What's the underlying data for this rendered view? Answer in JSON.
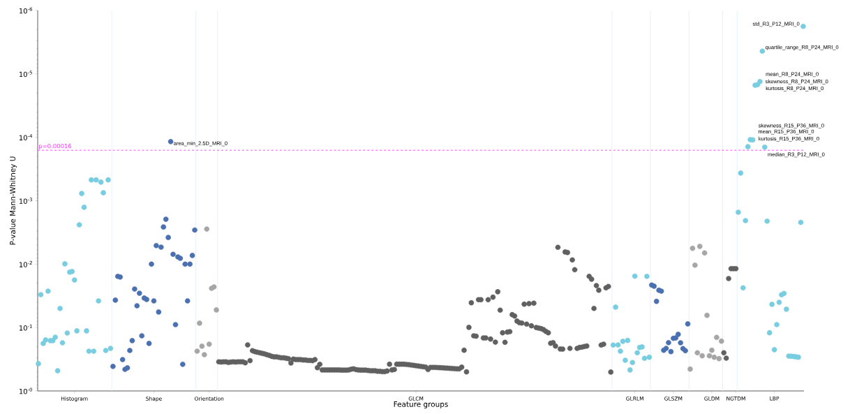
{
  "chart_data": {
    "type": "scatter",
    "xlabel": "Feature groups",
    "ylabel": "P-value Mann-Whitney U",
    "log": "y",
    "marker": "circle",
    "ylim": [
      1,
      1e-06
    ],
    "yticks": [
      {
        "value": 1,
        "label": "10$^{-0}$"
      },
      {
        "value": 0.1,
        "label": "10$^{-1}$"
      },
      {
        "value": 0.01,
        "label": "10$^{-2}$"
      },
      {
        "value": 0.001,
        "label": "10$^{-3}$"
      },
      {
        "value": 0.0001,
        "label": "10$^{-4}$"
      },
      {
        "value": 1e-05,
        "label": "10$^{-5}$"
      },
      {
        "value": 1e-06,
        "label": "10$^{-6}$"
      }
    ],
    "categories": [
      null,
      null,
      null,
      null,
      null,
      null,
      null,
      null,
      null,
      null,
      null,
      null,
      null,
      null,
      null,
      "Histogram",
      null,
      null,
      null,
      null,
      null,
      null,
      null,
      null,
      null,
      null,
      null,
      null,
      null,
      null,
      null,
      null,
      null,
      null,
      null,
      null,
      null,
      null,
      null,
      null,
      null,
      null,
      null,
      null,
      null,
      null,
      null,
      null,
      "Shape",
      null,
      null,
      null,
      null,
      null,
      null,
      null,
      null,
      null,
      null,
      null,
      null,
      null,
      null,
      null,
      null,
      null,
      null,
      null,
      null,
      null,
      null,
      "Orientation",
      null,
      null,
      null,
      null,
      null,
      null,
      null,
      null,
      null,
      null,
      null,
      null,
      null,
      null,
      null,
      null,
      null,
      null,
      null,
      null,
      null,
      null,
      null,
      null,
      null,
      null,
      null,
      null,
      null,
      null,
      null,
      null,
      null,
      null,
      null,
      null,
      null,
      null,
      null,
      null,
      null,
      null,
      null,
      null,
      null,
      null,
      null,
      null,
      null,
      null,
      null,
      null,
      null,
      null,
      null,
      null,
      null,
      null,
      null,
      null,
      null,
      null,
      null,
      null,
      null,
      null,
      null,
      null,
      null,
      null,
      null,
      null,
      null,
      null,
      null,
      null,
      null,
      null,
      null,
      null,
      null,
      null,
      null,
      null,
      null,
      "GLCM",
      null,
      null,
      null,
      null,
      null,
      null,
      null,
      null,
      null,
      null,
      null,
      null,
      null,
      null,
      null,
      null,
      null,
      null,
      null,
      null,
      null,
      null,
      null,
      null,
      null,
      null,
      null,
      null,
      null,
      null,
      null,
      null,
      null,
      null,
      null,
      null,
      null,
      null,
      null,
      null,
      null,
      null,
      null,
      null,
      null,
      null,
      null,
      null,
      null,
      null,
      null,
      null,
      null,
      null,
      null,
      null,
      null,
      null,
      null,
      null,
      null,
      null,
      null,
      null,
      null,
      null,
      null,
      null,
      null,
      null,
      null,
      null,
      null,
      null,
      null,
      null,
      null,
      null,
      null,
      null,
      null,
      null,
      null,
      null,
      null,
      null,
      null,
      null,
      null,
      null,
      "GLRLM",
      null,
      null,
      null,
      null,
      null,
      null,
      null,
      null,
      null,
      null,
      null,
      null,
      null,
      null,
      null,
      "GLSZM",
      null,
      null,
      null,
      null,
      null,
      null,
      null,
      null,
      null,
      null,
      null,
      null,
      null,
      null,
      null,
      "GLDM",
      null,
      null,
      null,
      null,
      null,
      null,
      null,
      null,
      null,
      "NGTDM",
      null,
      null,
      null,
      null,
      null,
      null,
      null,
      null,
      null,
      null,
      null,
      null,
      null,
      null,
      null,
      "LBP",
      null,
      null,
      null,
      null,
      null,
      null,
      null,
      null,
      null,
      null,
      null,
      null
    ],
    "values": [
      0.372,
      0.0303,
      0.178,
      0.157,
      0.0267,
      0.161,
      0.161,
      0.142,
      0.48,
      0.05,
      0.174,
      0.0099,
      0.122,
      0.0134,
      0.0131,
      0.0178,
      0.113,
      0.0024,
      0.00077,
      0.00127,
      0.113,
      0.236,
      0.00047,
      0.236,
      0.00047,
      0.038,
      0.00051,
      0.00075,
      0.23,
      0.00047,
      0.213,
      0.41,
      0.037,
      0.0156,
      0.016,
      0.32,
      0.456,
      0.433,
      0.23,
      0.161,
      0.0247,
      0.0454,
      0.0288,
      0.135,
      0.0343,
      0.0361,
      0.178,
      0.01,
      0.038,
      0.0051,
      0.057,
      0.0054,
      0.0026,
      0.00196,
      0.0038,
      0.000117,
      0.007,
      0.09,
      0.0077,
      0.0081,
      0.38,
      0.01,
      0.038,
      0.01,
      0.0073,
      0.0029,
      0.236,
      0.0855,
      0.197,
      0.268,
      0.0028,
      0.183,
      0.0241,
      0.0229,
      0.0528,
      0.347,
      0.35,
      0.347,
      0.347,
      0.355,
      0.35,
      0.347,
      0.35,
      0.347,
      0.347,
      0.347,
      0.36,
      0.188,
      0.333,
      0.232,
      0.24,
      0.245,
      0.25,
      0.255,
      0.26,
      0.268,
      0.275,
      0.285,
      0.29,
      0.29,
      0.295,
      0.3,
      0.3,
      0.305,
      0.31,
      0.363,
      0.315,
      0.32,
      0.32,
      0.32,
      0.325,
      0.325,
      0.33,
      0.33,
      0.333,
      0.32,
      0.43,
      0.38,
      0.467,
      0.467,
      0.467,
      0.467,
      0.467,
      0.467,
      0.467,
      0.467,
      0.47,
      0.47,
      0.47,
      0.467,
      0.455,
      0.448,
      0.46,
      0.467,
      0.47,
      0.47,
      0.47,
      0.475,
      0.48,
      0.48,
      0.48,
      0.49,
      0.49,
      0.496,
      0.496,
      0.485,
      0.379,
      0.467,
      0.459,
      0.379,
      0.379,
      0.379,
      0.379,
      0.382,
      0.385,
      0.39,
      0.395,
      0.4,
      0.405,
      0.41,
      0.415,
      0.42,
      0.459,
      0.425,
      0.425,
      0.425,
      0.428,
      0.43,
      0.432,
      0.435,
      0.437,
      0.44,
      0.442,
      0.445,
      0.448,
      0.448,
      0.422,
      0.228,
      0.5,
      0.0995,
      0.0407,
      0.135,
      0.137,
      0.0364,
      0.0364,
      0.146,
      0.146,
      0.0364,
      0.152,
      0.0332,
      0.17,
      0.0273,
      0.0532,
      0.121,
      0.171,
      0.118,
      0.116,
      0.0626,
      0.0659,
      0.0792,
      0.084,
      0.085,
      0.0428,
      0.0883,
      0.042,
      0.094,
      0.0413,
      0.1,
      0.102,
      0.104,
      0.108,
      0.115,
      0.121,
      0.177,
      0.173,
      0.196,
      0.00543,
      0.218,
      0.219,
      0.00644,
      0.00656,
      0.213,
      0.0086,
      0.01225,
      0.213,
      0.206,
      0.204,
      0.199,
      0.196,
      0.0156,
      0.0173,
      0.0499,
      0.0218,
      0.0258,
      0.189,
      0.183,
      0.0237,
      0.0225,
      0.504,
      0.189,
      0.0477,
      0.188,
      0.236,
      0.165,
      0.328,
      0.16,
      0.467,
      0.356,
      0.0155,
      0.25,
      0.206,
      0.202,
      0.306,
      0.0156,
      0.294,
      0.0214,
      0.0223,
      0.0387,
      0.0258,
      0.0267,
      0.228,
      0.213,
      0.173,
      0.24,
      0.148,
      0.146,
      0.128,
      0.174,
      0.215,
      0.232,
      0.0877,
      0.452,
      0.00563,
      0.0104,
      0.25,
      0.00526,
      0.279,
      0.00666,
      0.0642,
      0.279,
      0.228,
      0.294,
      0.143,
      0.309,
      0.164,
      0.25,
      0.304,
      0.0169,
      0.0118,
      0.0118,
      0.0118,
      0.00152,
      0.000367,
      0.0237,
      0.00206,
      0.000141,
      0.000109,
      0.00011,
      1.51e-05,
      1.48e-05,
      1.32e-05,
      4.38e-06,
      0.000143,
      0.0021,
      0.121,
      0.0431,
      0.224,
      0.09,
      0.04,
      0.0305,
      0.029,
      0.0515,
      0.282,
      0.284,
      0.286,
      0.29,
      0.294,
      0.0022,
      1.78e-06
    ],
    "colors": [
      "#78cde0",
      "#78cde0",
      "#78cde0",
      "#78cde0",
      "#78cde0",
      "#78cde0",
      "#78cde0",
      "#78cde0",
      "#78cde0",
      "#78cde0",
      "#78cde0",
      "#78cde0",
      "#78cde0",
      "#78cde0",
      "#78cde0",
      "#78cde0",
      "#78cde0",
      "#78cde0",
      "#78cde0",
      "#78cde0",
      "#78cde0",
      "#78cde0",
      "#78cde0",
      "#78cde0",
      "#78cde0",
      "#78cde0",
      "#78cde0",
      "#78cde0",
      "#78cde0",
      "#78cde0",
      "#78cde0",
      "#4a70b0",
      "#4a70b0",
      "#4a70b0",
      "#4a70b0",
      "#4a70b0",
      "#4a70b0",
      "#4a70b0",
      "#4a70b0",
      "#4a70b0",
      "#4a70b0",
      "#4a70b0",
      "#4a70b0",
      "#4a70b0",
      "#4a70b0",
      "#4a70b0",
      "#4a70b0",
      "#4a70b0",
      "#4a70b0",
      "#4a70b0",
      "#4a70b0",
      "#4a70b0",
      "#4a70b0",
      "#4a70b0",
      "#4a70b0",
      "#4a70b0",
      "#4a70b0",
      "#4a70b0",
      "#4a70b0",
      "#4a70b0",
      "#4a70b0",
      "#4a70b0",
      "#4a70b0",
      "#4a70b0",
      "#4a70b0",
      "#4a70b0",
      "#a6a6a6",
      "#a6a6a6",
      "#a6a6a6",
      "#a6a6a6",
      "#a6a6a6",
      "#a6a6a6",
      "#a6a6a6",
      "#a6a6a6",
      "#a6a6a6",
      "#606060",
      "#606060",
      "#606060",
      "#606060",
      "#606060",
      "#606060",
      "#606060",
      "#606060",
      "#606060",
      "#606060",
      "#606060",
      "#606060",
      "#606060",
      "#606060",
      "#606060",
      "#606060",
      "#606060",
      "#606060",
      "#606060",
      "#606060",
      "#606060",
      "#606060",
      "#606060",
      "#606060",
      "#606060",
      "#606060",
      "#606060",
      "#606060",
      "#606060",
      "#606060",
      "#606060",
      "#606060",
      "#606060",
      "#606060",
      "#606060",
      "#606060",
      "#606060",
      "#606060",
      "#606060",
      "#606060",
      "#606060",
      "#606060",
      "#606060",
      "#606060",
      "#606060",
      "#606060",
      "#606060",
      "#606060",
      "#606060",
      "#606060",
      "#606060",
      "#606060",
      "#606060",
      "#606060",
      "#606060",
      "#606060",
      "#606060",
      "#606060",
      "#606060",
      "#606060",
      "#606060",
      "#606060",
      "#606060",
      "#606060",
      "#606060",
      "#606060",
      "#606060",
      "#606060",
      "#606060",
      "#606060",
      "#606060",
      "#606060",
      "#606060",
      "#606060",
      "#606060",
      "#606060",
      "#606060",
      "#606060",
      "#606060",
      "#606060",
      "#606060",
      "#606060",
      "#606060",
      "#606060",
      "#606060",
      "#606060",
      "#606060",
      "#606060",
      "#606060",
      "#606060",
      "#606060",
      "#606060",
      "#606060",
      "#606060",
      "#606060",
      "#606060",
      "#606060",
      "#606060",
      "#606060",
      "#606060",
      "#606060",
      "#606060",
      "#606060",
      "#606060",
      "#606060",
      "#606060",
      "#606060",
      "#606060",
      "#606060",
      "#606060",
      "#606060",
      "#606060",
      "#606060",
      "#606060",
      "#606060",
      "#606060",
      "#606060",
      "#606060",
      "#606060",
      "#606060",
      "#606060",
      "#606060",
      "#606060",
      "#606060",
      "#606060",
      "#606060",
      "#606060",
      "#606060",
      "#606060",
      "#606060",
      "#606060",
      "#606060",
      "#606060",
      "#606060",
      "#606060",
      "#606060",
      "#606060",
      "#606060",
      "#606060",
      "#606060",
      "#606060",
      "#606060",
      "#606060",
      "#606060",
      "#606060",
      "#606060",
      "#606060",
      "#606060",
      "#606060",
      "#606060",
      "#606060",
      "#606060",
      "#606060",
      "#606060",
      "#606060",
      "#606060",
      "#606060",
      "#606060",
      "#606060",
      "#606060",
      "#606060",
      "#606060",
      "#606060",
      "#606060",
      "#78cde0",
      "#78cde0",
      "#78cde0",
      "#78cde0",
      "#78cde0",
      "#78cde0",
      "#78cde0",
      "#78cde0",
      "#78cde0",
      "#78cde0",
      "#78cde0",
      "#78cde0",
      "#78cde0",
      "#78cde0",
      "#78cde0",
      "#78cde0",
      "#4a70b0",
      "#4a70b0",
      "#4a70b0",
      "#4a70b0",
      "#4a70b0",
      "#4a70b0",
      "#4a70b0",
      "#4a70b0",
      "#4a70b0",
      "#4a70b0",
      "#4a70b0",
      "#4a70b0",
      "#4a70b0",
      "#4a70b0",
      "#4a70b0",
      "#4a70b0",
      "#a6a6a6",
      "#a6a6a6",
      "#a6a6a6",
      "#a6a6a6",
      "#a6a6a6",
      "#a6a6a6",
      "#a6a6a6",
      "#a6a6a6",
      "#a6a6a6",
      "#a6a6a6",
      "#a6a6a6",
      "#a6a6a6",
      "#a6a6a6",
      "#a6a6a6",
      "#606060",
      "#606060",
      "#606060",
      "#606060",
      "#606060",
      "#606060",
      "#78cde0",
      "#78cde0",
      "#78cde0",
      "#78cde0",
      "#78cde0",
      "#78cde0",
      "#78cde0",
      "#78cde0",
      "#78cde0",
      "#78cde0",
      "#78cde0",
      "#78cde0",
      "#78cde0",
      "#78cde0",
      "#78cde0",
      "#78cde0",
      "#78cde0",
      "#78cde0",
      "#78cde0",
      "#78cde0",
      "#78cde0",
      "#78cde0",
      "#78cde0",
      "#78cde0",
      "#78cde0",
      "#78cde0",
      "#78cde0",
      "#78cde0"
    ],
    "ref_lines": [
      {
        "axis": "y",
        "value": 0.00016,
        "label": "p=0.00016",
        "color": "#ff33ff",
        "line_style": "dashed"
      }
    ],
    "annotations": [
      "area_min_2.5D_MRI_0",
      "std_R3_P12_MRI_0",
      "quartile_range_R8_P24_MRI_0",
      "mean_R8_P24_MRI_0",
      "skewness_R8_P24_MRI_0",
      "kurtosis_R8_P24_MRI_0",
      "skewness_R15_P36_MRI_0",
      "mean_R15_P36_MRI_0",
      "kurtosis_R15_P36_MRI_0",
      "median_R3_P12_MRI_0"
    ]
  }
}
